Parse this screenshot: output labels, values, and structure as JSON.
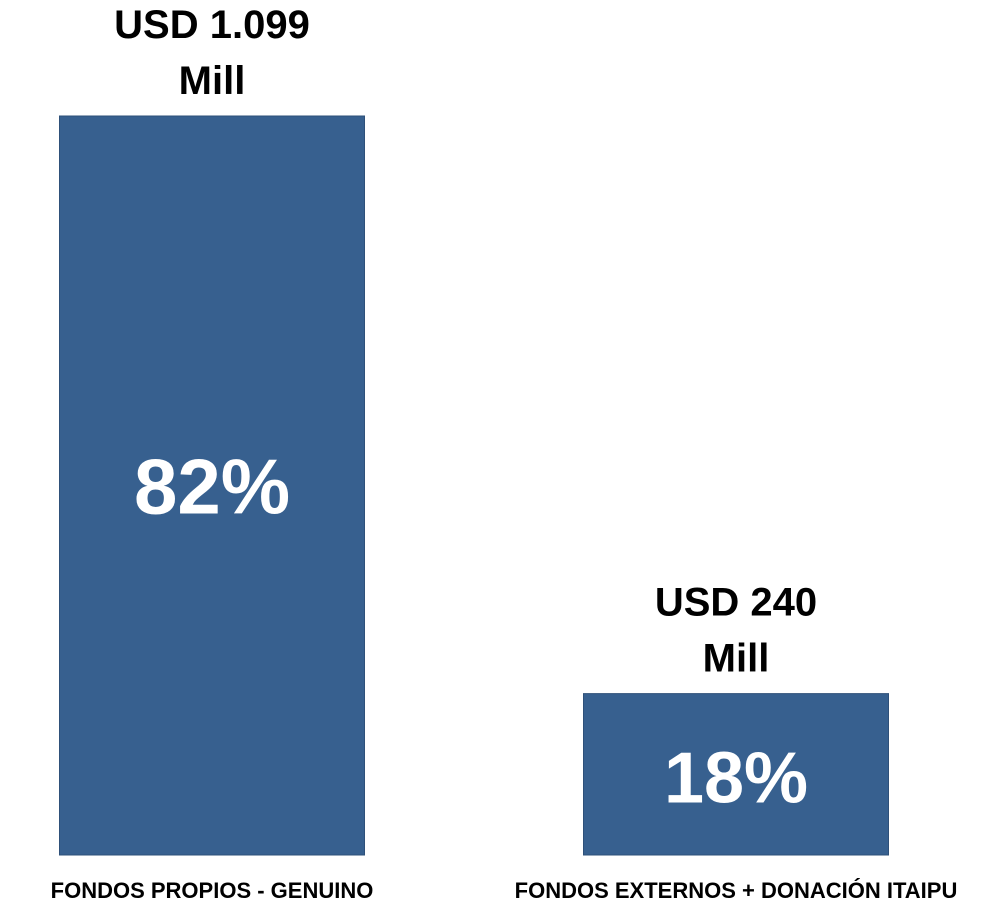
{
  "chart_data": {
    "type": "bar",
    "categories": [
      "FONDOS PROPIOS - GENUINO",
      "FONDOS EXTERNOS + DONACIÓN ITAIPU"
    ],
    "values": [
      1099,
      240
    ],
    "value_labels": [
      [
        "USD 1.099",
        "Mill"
      ],
      [
        "USD 240",
        "Mill"
      ]
    ],
    "percent_labels": [
      "82%",
      "18%"
    ],
    "title": "",
    "xlabel": "",
    "ylabel": "",
    "ylim": [
      0,
      1099
    ],
    "grid": false,
    "legend": "none",
    "colors": {
      "bar": "#37608F",
      "bar_edge": "#2E5079",
      "percent_text": "#ffffff",
      "label_text": "#000000"
    }
  }
}
